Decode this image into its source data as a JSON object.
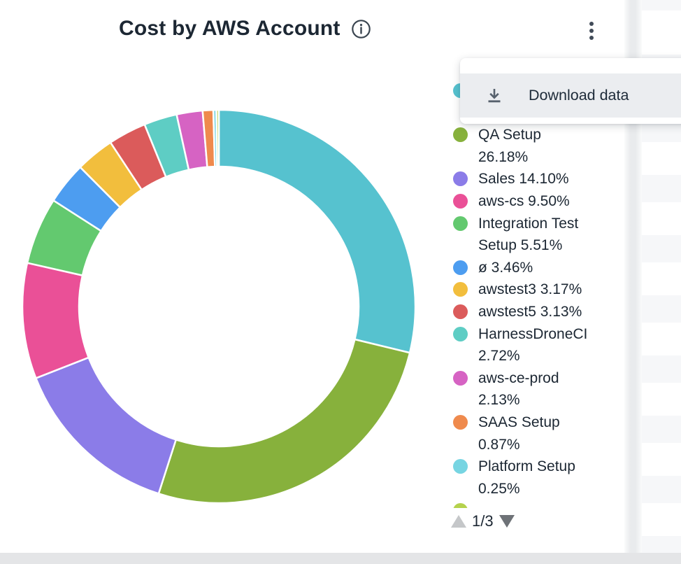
{
  "header": {
    "title": "Cost by AWS Account",
    "info_icon": "info-icon"
  },
  "menu": {
    "items": [
      {
        "icon": "download-icon",
        "label": "Download data"
      }
    ]
  },
  "legend": {
    "items": [
      {
        "color": "#56C2CF",
        "lines": [
          "",
          ""
        ],
        "occluded": true
      },
      {
        "color": "#87B13C",
        "lines": [
          "QA Setup",
          "26.18%"
        ]
      },
      {
        "color": "#8B7CE8",
        "lines": [
          "Sales 14.10%"
        ]
      },
      {
        "color": "#EA5097",
        "lines": [
          "aws-cs 9.50%"
        ]
      },
      {
        "color": "#63C96F",
        "lines": [
          "Integration Test",
          "Setup 5.51%"
        ]
      },
      {
        "color": "#4D9DF0",
        "lines": [
          "ø 3.46%"
        ]
      },
      {
        "color": "#F2BE3D",
        "lines": [
          "awstest3 3.17%"
        ]
      },
      {
        "color": "#DB5B5B",
        "lines": [
          "awstest5 3.13%"
        ]
      },
      {
        "color": "#5ECDC4",
        "lines": [
          "HarnessDroneCI",
          "2.72%"
        ]
      },
      {
        "color": "#D663C3",
        "lines": [
          "aws-ce-prod",
          "2.13%"
        ]
      },
      {
        "color": "#EF8A4D",
        "lines": [
          "SAAS Setup",
          "0.87%"
        ]
      },
      {
        "color": "#77D5E2",
        "lines": [
          "Platform Setup",
          "0.25%"
        ]
      },
      {
        "color": "#B5D24D",
        "lines": [],
        "partial": true
      }
    ],
    "pagination": {
      "page": "1/3"
    }
  },
  "chart_data": {
    "type": "pie",
    "subtype": "donut",
    "title": "Cost by AWS Account",
    "legend_position": "right",
    "start_angle_deg": -90,
    "direction": "clockwise",
    "inner_radius_ratio": 0.71,
    "segments": [
      {
        "label": "",
        "pct": 28.78,
        "color": "#56C2CF"
      },
      {
        "label": "QA Setup",
        "pct": 26.18,
        "color": "#87B13C"
      },
      {
        "label": "Sales",
        "pct": 14.1,
        "color": "#8B7CE8"
      },
      {
        "label": "aws-cs",
        "pct": 9.5,
        "color": "#EA5097"
      },
      {
        "label": "Integration Test Setup",
        "pct": 5.51,
        "color": "#63C96F"
      },
      {
        "label": "ø",
        "pct": 3.46,
        "color": "#4D9DF0"
      },
      {
        "label": "awstest3",
        "pct": 3.17,
        "color": "#F2BE3D"
      },
      {
        "label": "awstest5",
        "pct": 3.13,
        "color": "#DB5B5B"
      },
      {
        "label": "HarnessDroneCI",
        "pct": 2.72,
        "color": "#5ECDC4"
      },
      {
        "label": "aws-ce-prod",
        "pct": 2.13,
        "color": "#D663C3"
      },
      {
        "label": "SAAS Setup",
        "pct": 0.87,
        "color": "#EF8A4D"
      },
      {
        "label": "Platform Setup",
        "pct": 0.25,
        "color": "#77D5E2"
      },
      {
        "label": "",
        "pct": 0.2,
        "color": "#B5D24D"
      }
    ]
  },
  "colors": {
    "text": "#1C2733",
    "menu_hover_row": "#EBEDF0",
    "page_background": "#E4E5E7",
    "side_stripe": "#F6F7F9",
    "icon": "#414B58"
  }
}
